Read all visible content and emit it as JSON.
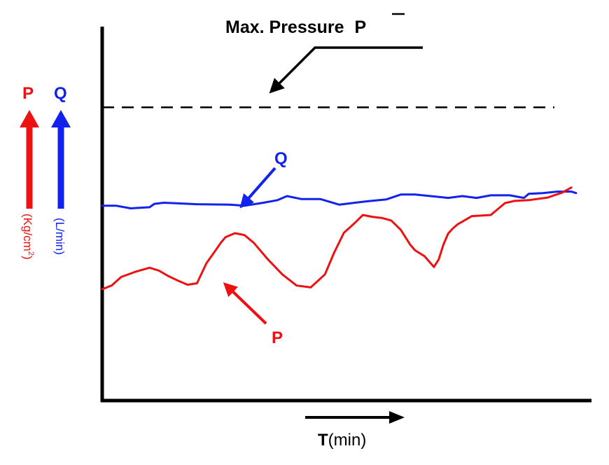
{
  "chart_data": {
    "type": "line",
    "title": "Max. Pressure",
    "title_symbol": "P",
    "title_symbol_overbar": true,
    "xlabel": {
      "bold": "T",
      "rest": "(min)"
    },
    "ylabels": [
      {
        "symbol": "P",
        "unit": "(Kg/cm",
        "unit_sup": "2",
        "unit_close": ")",
        "color": "#ee1111"
      },
      {
        "symbol": "Q",
        "unit": "(L/min)",
        "color": "#1122ee"
      }
    ],
    "xlim": [
      0,
      100
    ],
    "ylim": [
      0,
      100
    ],
    "grid": false,
    "legend": "none",
    "max_pressure_level": 79,
    "series": [
      {
        "name": "Q",
        "color": "#1122ee",
        "x": [
          0,
          3,
          6,
          10,
          11,
          13,
          20,
          27,
          30,
          34,
          37,
          39,
          42,
          46,
          50,
          52,
          56,
          60,
          63,
          66,
          70,
          73,
          76,
          79,
          82,
          86,
          89,
          90,
          93,
          96,
          99,
          100
        ],
        "y": [
          52.5,
          52.5,
          51.8,
          52.1,
          53.0,
          53.3,
          52.9,
          52.8,
          52.5,
          53.3,
          54.0,
          55.1,
          54.3,
          54.3,
          52.8,
          53.1,
          53.7,
          54.2,
          55.5,
          55.5,
          55.0,
          54.6,
          55.1,
          54.6,
          55.3,
          55.3,
          54.6,
          55.7,
          55.9,
          56.3,
          56.3,
          55.9
        ]
      },
      {
        "name": "P",
        "color": "#ee1111",
        "x": [
          0,
          2,
          4,
          7,
          10,
          12,
          14,
          16,
          18,
          20,
          22,
          24,
          25,
          26,
          28,
          30,
          32,
          35,
          38,
          41,
          44,
          47,
          49,
          51,
          53,
          55,
          57,
          59,
          61,
          63,
          65,
          66,
          68,
          70,
          71,
          72,
          73,
          74,
          75,
          78,
          82,
          85,
          87,
          90,
          94,
          97,
          99
        ],
        "y": [
          30.0,
          31.0,
          33.3,
          34.7,
          35.8,
          35.0,
          33.5,
          32.3,
          31.2,
          31.6,
          37.0,
          40.6,
          42.5,
          44.0,
          45.1,
          44.6,
          42.5,
          38.0,
          34.0,
          31.0,
          30.5,
          34.0,
          40.0,
          45.2,
          47.5,
          50.0,
          49.5,
          49.2,
          48.5,
          46.0,
          42.0,
          40.5,
          38.9,
          36.0,
          38.0,
          42.0,
          45.0,
          46.4,
          47.5,
          49.7,
          50.0,
          53.2,
          53.8,
          54.0,
          54.7,
          56.0,
          57.4
        ]
      }
    ],
    "annotations": [
      {
        "text": "Q",
        "color": "#1122ee",
        "points_to": "Q"
      },
      {
        "text": "P",
        "color": "#ee1111",
        "points_to": "P"
      }
    ]
  }
}
